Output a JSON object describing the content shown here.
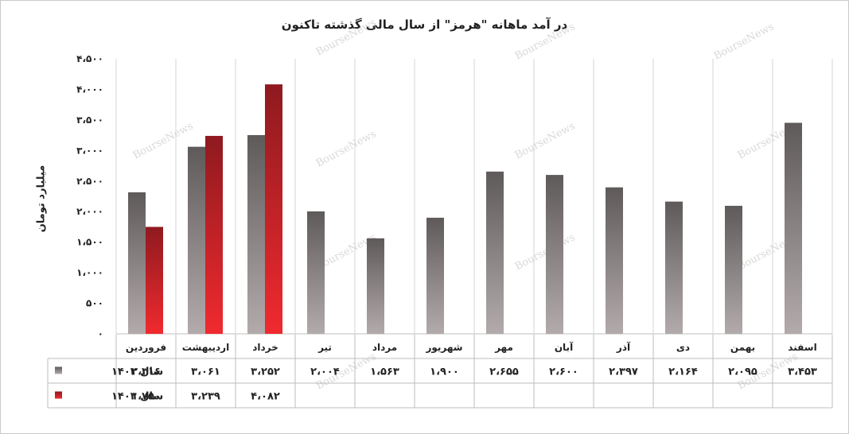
{
  "chart_data": {
    "type": "bar",
    "title": "در آمد ماهانه \"هرمز\" از سال مالی گذشته تاکنون",
    "ylabel": "میلیارد تومان",
    "ylim": [
      0,
      4500
    ],
    "yticks": [
      0,
      500,
      1000,
      1500,
      2000,
      2500,
      3000,
      3500,
      4000,
      4500
    ],
    "ytick_labels": [
      "۰",
      "۵۰۰",
      "۱،۰۰۰",
      "۱،۵۰۰",
      "۲،۰۰۰",
      "۲،۵۰۰",
      "۳،۰۰۰",
      "۳،۵۰۰",
      "۴،۰۰۰",
      "۴،۵۰۰"
    ],
    "categories": [
      "فروردین",
      "اردیبهشت",
      "خرداد",
      "تیر",
      "مرداد",
      "شهریور",
      "مهر",
      "آبان",
      "آذر",
      "دی",
      "بهمن",
      "اسفند"
    ],
    "series": [
      {
        "name": "سال ۱۴۰۲",
        "color": "#6e6a6a",
        "values": [
          2316,
          3061,
          3252,
          2004,
          1563,
          1900,
          2655,
          2600,
          2397,
          2164,
          2095,
          3453
        ],
        "labels": [
          "۲،۳۱۶",
          "۳،۰۶۱",
          "۳،۲۵۲",
          "۲،۰۰۴",
          "۱،۵۶۳",
          "۱،۹۰۰",
          "۲،۶۵۵",
          "۲،۶۰۰",
          "۲،۳۹۷",
          "۲،۱۶۴",
          "۲،۰۹۵",
          "۳،۴۵۳"
        ]
      },
      {
        "name": "سال ۱۴۰۳",
        "color": "#d42026",
        "values": [
          1750,
          3239,
          4082,
          null,
          null,
          null,
          null,
          null,
          null,
          null,
          null,
          null
        ],
        "labels": [
          "۱،۷۵۰",
          "۳،۲۳۹",
          "۴،۰۸۲",
          "",
          "",
          "",
          "",
          "",
          "",
          "",
          "",
          ""
        ]
      }
    ],
    "grid": true,
    "legend": "data-table",
    "watermark": "BourseNews"
  }
}
